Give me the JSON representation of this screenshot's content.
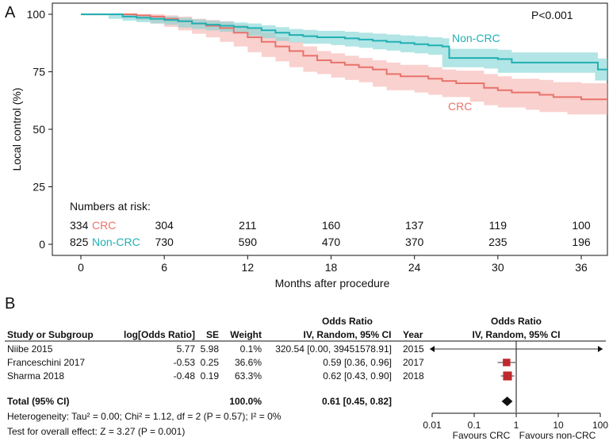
{
  "chart_data": [
    {
      "type": "line",
      "panel_label": "A",
      "xlabel": "Months after procedure",
      "ylabel": "Local control (%)",
      "xlim": [
        -2,
        38
      ],
      "ylim": [
        0,
        100
      ],
      "xticks": [
        0,
        6,
        12,
        18,
        24,
        30,
        36
      ],
      "yticks": [
        0,
        25,
        50,
        75,
        100
      ],
      "p_value": "P<0.001",
      "series": [
        {
          "name": "CRC",
          "color": "#e8736c",
          "band_color": "#f5b3ae",
          "points": [
            [
              0,
              100
            ],
            [
              3,
              100
            ],
            [
              4,
              99.5
            ],
            [
              5,
              99
            ],
            [
              6,
              98
            ],
            [
              7,
              97
            ],
            [
              8,
              96
            ],
            [
              9,
              95
            ],
            [
              10,
              94
            ],
            [
              11,
              92
            ],
            [
              12,
              90
            ],
            [
              13,
              88
            ],
            [
              14,
              86
            ],
            [
              15,
              84
            ],
            [
              16,
              82
            ],
            [
              17,
              80
            ],
            [
              18,
              79
            ],
            [
              19,
              78
            ],
            [
              20,
              77
            ],
            [
              21,
              76
            ],
            [
              22,
              74
            ],
            [
              23,
              73
            ],
            [
              24,
              73
            ],
            [
              25,
              72
            ],
            [
              26,
              71
            ],
            [
              27,
              70
            ],
            [
              28,
              70
            ],
            [
              29,
              68
            ],
            [
              30,
              67
            ],
            [
              31,
              66
            ],
            [
              32,
              66
            ],
            [
              33,
              65
            ],
            [
              34,
              64
            ],
            [
              35,
              64
            ],
            [
              36,
              63
            ],
            [
              37,
              63
            ],
            [
              38,
              63
            ]
          ],
          "upper": [
            [
              0,
              100
            ],
            [
              3,
              100
            ],
            [
              4,
              100
            ],
            [
              5,
              100
            ],
            [
              6,
              99.5
            ],
            [
              7,
              99
            ],
            [
              8,
              98
            ],
            [
              9,
              97.5
            ],
            [
              10,
              97
            ],
            [
              11,
              95.5
            ],
            [
              12,
              94
            ],
            [
              13,
              92
            ],
            [
              14,
              90
            ],
            [
              15,
              88
            ],
            [
              16,
              86
            ],
            [
              17,
              84
            ],
            [
              18,
              83
            ],
            [
              19,
              82
            ],
            [
              20,
              81
            ],
            [
              21,
              80
            ],
            [
              22,
              79
            ],
            [
              23,
              78
            ],
            [
              24,
              78
            ],
            [
              25,
              77
            ],
            [
              26,
              76
            ],
            [
              27,
              75.5
            ],
            [
              28,
              75.5
            ],
            [
              29,
              74
            ],
            [
              30,
              73
            ],
            [
              31,
              72
            ],
            [
              32,
              72
            ],
            [
              33,
              71.5
            ],
            [
              34,
              70.5
            ],
            [
              35,
              70.5
            ],
            [
              36,
              70
            ],
            [
              37,
              70
            ],
            [
              38,
              70
            ]
          ],
          "lower": [
            [
              0,
              100
            ],
            [
              3,
              99.5
            ],
            [
              4,
              98.5
            ],
            [
              5,
              97.5
            ],
            [
              6,
              96
            ],
            [
              7,
              94.5
            ],
            [
              8,
              93
            ],
            [
              9,
              91.5
            ],
            [
              10,
              90
            ],
            [
              11,
              88
            ],
            [
              12,
              86
            ],
            [
              13,
              83.5
            ],
            [
              14,
              81.5
            ],
            [
              15,
              79.5
            ],
            [
              16,
              77
            ],
            [
              17,
              75
            ],
            [
              18,
              74
            ],
            [
              19,
              72.5
            ],
            [
              20,
              71.5
            ],
            [
              21,
              70.5
            ],
            [
              22,
              68.5
            ],
            [
              23,
              67
            ],
            [
              24,
              67
            ],
            [
              25,
              66
            ],
            [
              26,
              65
            ],
            [
              27,
              64
            ],
            [
              28,
              64
            ],
            [
              29,
              62
            ],
            [
              30,
              60.5
            ],
            [
              31,
              59.5
            ],
            [
              32,
              59.5
            ],
            [
              33,
              58.5
            ],
            [
              34,
              57.5
            ],
            [
              35,
              57.5
            ],
            [
              36,
              56.5
            ],
            [
              37,
              56.5
            ],
            [
              38,
              56.5
            ]
          ],
          "label": "CRC"
        },
        {
          "name": "Non-CRC",
          "color": "#21b0b4",
          "band_color": "#7fd3d3",
          "points": [
            [
              0,
              100
            ],
            [
              2,
              100
            ],
            [
              3,
              99
            ],
            [
              4,
              98.5
            ],
            [
              5,
              98
            ],
            [
              6,
              97.5
            ],
            [
              7,
              97
            ],
            [
              8,
              96
            ],
            [
              9,
              95.5
            ],
            [
              10,
              95
            ],
            [
              11,
              94.5
            ],
            [
              12,
              94
            ],
            [
              13,
              93
            ],
            [
              14,
              92
            ],
            [
              15,
              91
            ],
            [
              16,
              90.5
            ],
            [
              17,
              90
            ],
            [
              18,
              90
            ],
            [
              19,
              89.5
            ],
            [
              20,
              89
            ],
            [
              21,
              88.5
            ],
            [
              22,
              88
            ],
            [
              23,
              87.5
            ],
            [
              24,
              87
            ],
            [
              25,
              86.5
            ],
            [
              26,
              86
            ],
            [
              26.5,
              81
            ],
            [
              27,
              81
            ],
            [
              28,
              81
            ],
            [
              29,
              81
            ],
            [
              30,
              80.5
            ],
            [
              31,
              79
            ],
            [
              32,
              79
            ],
            [
              33,
              79
            ],
            [
              34,
              79
            ],
            [
              35,
              79
            ],
            [
              36,
              79
            ],
            [
              37,
              79
            ],
            [
              37.2,
              76
            ],
            [
              38,
              76
            ]
          ],
          "upper": [
            [
              0,
              100
            ],
            [
              2,
              100
            ],
            [
              3,
              100
            ],
            [
              4,
              99.5
            ],
            [
              5,
              99.2
            ],
            [
              6,
              99
            ],
            [
              7,
              98.5
            ],
            [
              8,
              97.8
            ],
            [
              9,
              97.2
            ],
            [
              10,
              96.8
            ],
            [
              11,
              96.4
            ],
            [
              12,
              96
            ],
            [
              13,
              95.2
            ],
            [
              14,
              94.4
            ],
            [
              15,
              93.6
            ],
            [
              16,
              93.2
            ],
            [
              17,
              92.8
            ],
            [
              18,
              92.8
            ],
            [
              19,
              92.4
            ],
            [
              20,
              92
            ],
            [
              21,
              91.6
            ],
            [
              22,
              91.2
            ],
            [
              23,
              90.8
            ],
            [
              24,
              90.5
            ],
            [
              25,
              90
            ],
            [
              26,
              89.6
            ],
            [
              26.5,
              85
            ],
            [
              27,
              85
            ],
            [
              28,
              85
            ],
            [
              29,
              85
            ],
            [
              30,
              84.6
            ],
            [
              31,
              83.4
            ],
            [
              32,
              83.4
            ],
            [
              33,
              83.4
            ],
            [
              34,
              83.4
            ],
            [
              35,
              83.4
            ],
            [
              36,
              83.4
            ],
            [
              37,
              83.4
            ],
            [
              37.2,
              80.8
            ],
            [
              38,
              80.8
            ]
          ],
          "lower": [
            [
              0,
              100
            ],
            [
              2,
              99.6
            ],
            [
              3,
              98
            ],
            [
              4,
              97.2
            ],
            [
              5,
              96.6
            ],
            [
              6,
              96
            ],
            [
              7,
              95.4
            ],
            [
              8,
              94.2
            ],
            [
              9,
              93.6
            ],
            [
              10,
              93
            ],
            [
              11,
              92.4
            ],
            [
              12,
              91.8
            ],
            [
              13,
              90.6
            ],
            [
              14,
              89.6
            ],
            [
              15,
              88.4
            ],
            [
              16,
              87.8
            ],
            [
              17,
              87.2
            ],
            [
              18,
              87.2
            ],
            [
              19,
              86.6
            ],
            [
              20,
              86
            ],
            [
              21,
              85.4
            ],
            [
              22,
              84.8
            ],
            [
              23,
              84.2
            ],
            [
              24,
              83.5
            ],
            [
              25,
              83
            ],
            [
              26,
              82.4
            ],
            [
              26.5,
              77
            ],
            [
              27,
              77
            ],
            [
              28,
              77
            ],
            [
              29,
              77
            ],
            [
              30,
              76.4
            ],
            [
              31,
              74.6
            ],
            [
              32,
              74.6
            ],
            [
              33,
              74.6
            ],
            [
              34,
              74.6
            ],
            [
              35,
              74.6
            ],
            [
              36,
              74.6
            ],
            [
              37,
              74.6
            ],
            [
              37.2,
              71.2
            ],
            [
              38,
              71.2
            ]
          ],
          "label": "Non-CRC"
        }
      ],
      "risk_table": {
        "title": "Numbers at risk:",
        "times": [
          0,
          6,
          12,
          18,
          24,
          30,
          36
        ],
        "rows": [
          {
            "group": "CRC",
            "counts": [
              "334",
              "304",
              "211",
              "160",
              "137",
              "119",
              "100"
            ]
          },
          {
            "group": "Non-CRC",
            "counts": [
              "825",
              "730",
              "590",
              "470",
              "370",
              "235",
              "196"
            ]
          }
        ]
      }
    },
    {
      "type": "forest",
      "panel_label": "B",
      "section_title": "Odds Ratio",
      "section_subtitle": "IV, Random, 95% CI",
      "plot_title": "Odds Ratio",
      "plot_subtitle": "IV, Random, 95% CI",
      "columns": [
        "Study or Subgroup",
        "log[Odds Ratio]",
        "SE",
        "Weight",
        "Year"
      ],
      "studies": [
        {
          "name": "Niibe 2015",
          "log_or": "5.77",
          "se": "5.98",
          "weight": "0.1%",
          "ci_text": "320.54 [0.00, 39451578.91]",
          "year": "2015",
          "or": 320.54,
          "lower": 0.0,
          "upper": 39451578.91,
          "weight_value": 0.1
        },
        {
          "name": "Franceschini 2017",
          "log_or": "-0.53",
          "se": "0.25",
          "weight": "36.6%",
          "ci_text": "0.59 [0.36, 0.96]",
          "year": "2017",
          "or": 0.59,
          "lower": 0.36,
          "upper": 0.96,
          "weight_value": 36.6
        },
        {
          "name": "Sharma 2018",
          "log_or": "-0.48",
          "se": "0.19",
          "weight": "63.3%",
          "ci_text": "0.62 [0.43, 0.90]",
          "year": "2018",
          "or": 0.62,
          "lower": 0.43,
          "upper": 0.9,
          "weight_value": 63.3
        }
      ],
      "total": {
        "label": "Total (95% CI)",
        "weight": "100.0%",
        "ci_text": "0.61 [0.45, 0.82]",
        "or": 0.61,
        "lower": 0.45,
        "upper": 0.82
      },
      "heterogeneity": "Heterogeneity: Tau² = 0.00; Chi² = 1.12, df = 2 (P = 0.57); I² = 0%",
      "overall_effect": "Test for overall effect: Z = 3.27 (P = 0.001)",
      "xaxis_ticks": [
        0.01,
        0.1,
        1,
        10,
        100
      ],
      "xaxis_tick_labels": [
        "0.01",
        "0.1",
        "1",
        "10",
        "100"
      ],
      "xlim": [
        0.01,
        100
      ],
      "favours_left": "Favours CRC",
      "favours_right": "Favours non-CRC",
      "marker_color": "#c0282d"
    }
  ]
}
